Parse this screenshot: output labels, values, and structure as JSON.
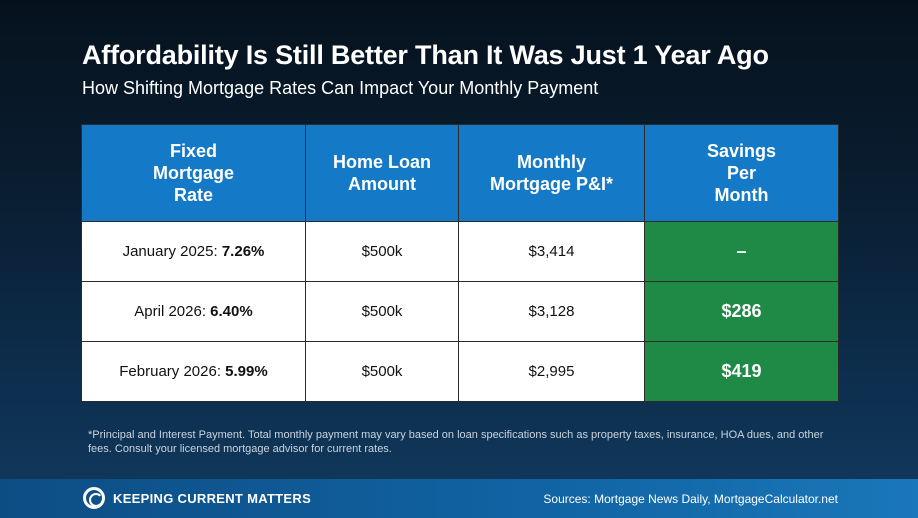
{
  "title": "Affordability Is Still Better Than It Was Just 1 Year Ago",
  "subtitle": "How Shifting Mortgage Rates Can Impact Your Monthly Payment",
  "table": {
    "headers": {
      "rate": [
        "Fixed",
        "Mortgage",
        "Rate"
      ],
      "loan": [
        "Home Loan",
        "Amount"
      ],
      "payment": [
        "Monthly",
        "Mortgage P&I*"
      ],
      "savings": [
        "Savings",
        "Per",
        "Month"
      ]
    },
    "rows": [
      {
        "date": "January 2025: ",
        "rate": "7.26%",
        "loan": "$500k",
        "payment": "$3,414",
        "savings": "–"
      },
      {
        "date": "April 2026: ",
        "rate": "6.40%",
        "loan": "$500k",
        "payment": "$3,128",
        "savings": "$286"
      },
      {
        "date": "February 2026: ",
        "rate": "5.99%",
        "loan": "$500k",
        "payment": "$2,995",
        "savings": "$419"
      }
    ]
  },
  "footnote": "*Principal and Interest Payment. Total monthly payment may vary based on loan specifications such as property taxes, insurance, HOA dues, and other fees. Consult your licensed mortgage advisor for current rates.",
  "footer": {
    "brand": "Keeping Current Matters",
    "sources": "Sources: Mortgage News Daily, MortgageCalculator.net"
  },
  "colors": {
    "header_blue": "#1479c6",
    "savings_green": "#1e8a46",
    "background": "#0a1f33"
  },
  "icons": {
    "logo": "kcm-swirl-logo"
  }
}
